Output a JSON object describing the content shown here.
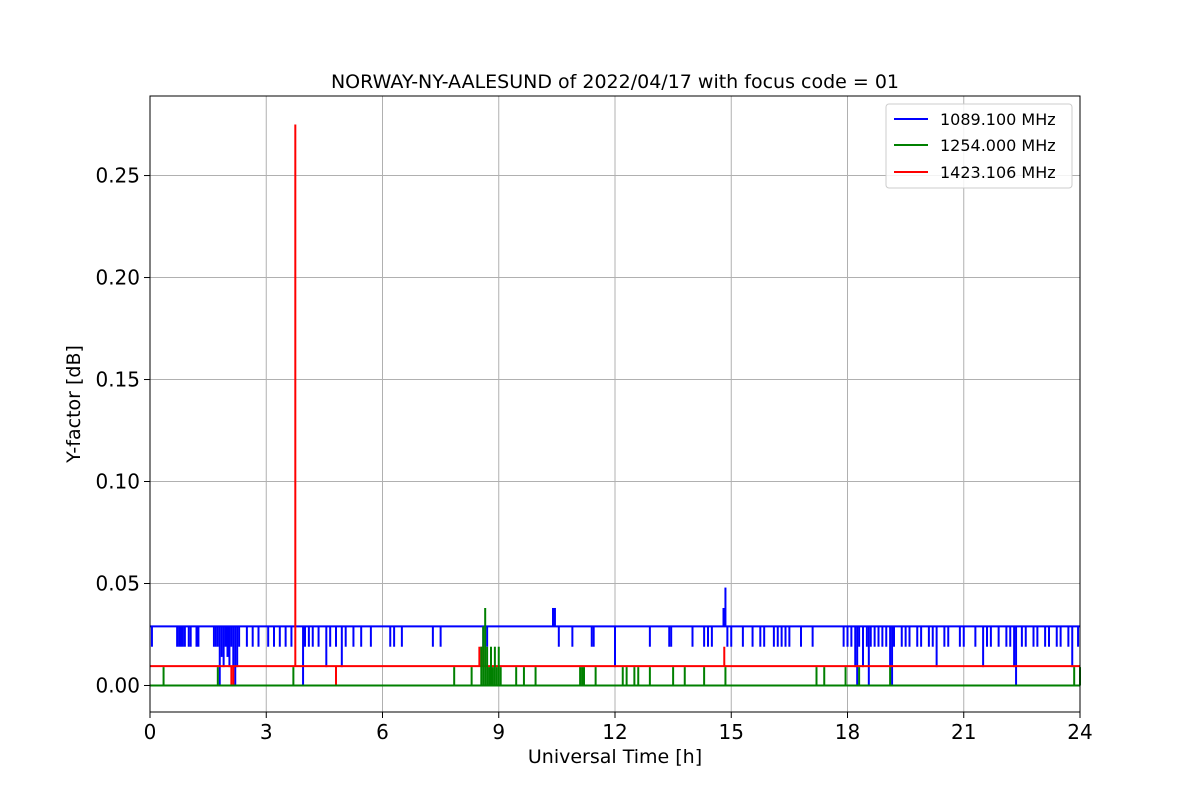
{
  "chart_data": {
    "type": "line",
    "title": "NORWAY-NY-AALESUND of 2022/04/17 with focus code = 01",
    "xlabel": "Universal Time [h]",
    "ylabel": "Y-factor [dB]",
    "xlim": [
      0,
      24
    ],
    "ylim": [
      -0.013,
      0.289
    ],
    "xticks": [
      0,
      3,
      6,
      9,
      12,
      15,
      18,
      21,
      24
    ],
    "xtick_labels": [
      "0",
      "3",
      "6",
      "9",
      "12",
      "15",
      "18",
      "21",
      "24"
    ],
    "yticks": [
      0.0,
      0.05,
      0.1,
      0.15,
      0.2,
      0.25
    ],
    "ytick_labels": [
      "0.00",
      "0.05",
      "0.10",
      "0.15",
      "0.20",
      "0.25"
    ],
    "grid": true,
    "legend_position": "top-right",
    "series": [
      {
        "name": "1089.100 MHz",
        "color": "#0000ff",
        "baseline": 0.029,
        "spikes": [
          [
            0.05,
            0.019
          ],
          [
            0.7,
            0.019
          ],
          [
            0.75,
            0.019
          ],
          [
            0.8,
            0.019
          ],
          [
            0.85,
            0.019
          ],
          [
            0.9,
            0.019
          ],
          [
            1.0,
            0.019
          ],
          [
            1.05,
            0.019
          ],
          [
            1.2,
            0.019
          ],
          [
            1.25,
            0.019
          ],
          [
            1.65,
            0.019
          ],
          [
            1.7,
            0.019
          ],
          [
            1.75,
            0.019
          ],
          [
            1.8,
            0.0
          ],
          [
            1.85,
            0.014
          ],
          [
            1.9,
            0.009
          ],
          [
            1.95,
            0.019
          ],
          [
            2.0,
            0.014
          ],
          [
            2.05,
            0.009
          ],
          [
            2.1,
            0.019
          ],
          [
            2.15,
            0.009
          ],
          [
            2.2,
            0.0
          ],
          [
            2.25,
            0.009
          ],
          [
            2.3,
            0.019
          ],
          [
            2.5,
            0.019
          ],
          [
            2.65,
            0.019
          ],
          [
            2.8,
            0.019
          ],
          [
            3.05,
            0.019
          ],
          [
            3.2,
            0.019
          ],
          [
            3.35,
            0.019
          ],
          [
            3.5,
            0.019
          ],
          [
            3.65,
            0.019
          ],
          [
            3.95,
            0.0
          ],
          [
            4.0,
            0.019
          ],
          [
            4.1,
            0.019
          ],
          [
            4.2,
            0.019
          ],
          [
            4.35,
            0.019
          ],
          [
            4.55,
            0.009
          ],
          [
            4.65,
            0.019
          ],
          [
            4.8,
            0.019
          ],
          [
            4.95,
            0.009
          ],
          [
            5.05,
            0.019
          ],
          [
            5.25,
            0.019
          ],
          [
            5.45,
            0.019
          ],
          [
            5.7,
            0.019
          ],
          [
            6.2,
            0.019
          ],
          [
            6.3,
            0.019
          ],
          [
            6.5,
            0.019
          ],
          [
            7.3,
            0.019
          ],
          [
            7.5,
            0.019
          ],
          [
            8.6,
            0.019
          ],
          [
            8.7,
            0.019
          ],
          [
            10.4,
            0.038
          ],
          [
            10.45,
            0.038
          ],
          [
            10.55,
            0.019
          ],
          [
            10.9,
            0.019
          ],
          [
            11.4,
            0.019
          ],
          [
            11.45,
            0.019
          ],
          [
            12.0,
            0.009
          ],
          [
            12.9,
            0.019
          ],
          [
            13.4,
            0.019
          ],
          [
            13.45,
            0.019
          ],
          [
            14.0,
            0.019
          ],
          [
            14.3,
            0.019
          ],
          [
            14.4,
            0.019
          ],
          [
            14.5,
            0.019
          ],
          [
            14.8,
            0.038
          ],
          [
            14.85,
            0.048
          ],
          [
            14.9,
            0.019
          ],
          [
            15.0,
            0.019
          ],
          [
            15.3,
            0.019
          ],
          [
            15.55,
            0.019
          ],
          [
            15.75,
            0.019
          ],
          [
            15.85,
            0.019
          ],
          [
            16.1,
            0.019
          ],
          [
            16.2,
            0.019
          ],
          [
            16.3,
            0.019
          ],
          [
            16.4,
            0.019
          ],
          [
            16.5,
            0.019
          ],
          [
            16.8,
            0.019
          ],
          [
            17.1,
            0.019
          ],
          [
            17.9,
            0.019
          ],
          [
            18.0,
            0.019
          ],
          [
            18.1,
            0.019
          ],
          [
            18.2,
            0.009
          ],
          [
            18.25,
            0.0
          ],
          [
            18.3,
            0.019
          ],
          [
            18.4,
            0.009
          ],
          [
            18.5,
            0.019
          ],
          [
            18.55,
            0.0
          ],
          [
            18.6,
            0.019
          ],
          [
            18.7,
            0.019
          ],
          [
            18.8,
            0.019
          ],
          [
            18.9,
            0.019
          ],
          [
            19.0,
            0.019
          ],
          [
            19.1,
            0.009
          ],
          [
            19.15,
            0.0
          ],
          [
            19.2,
            0.019
          ],
          [
            19.4,
            0.019
          ],
          [
            19.5,
            0.019
          ],
          [
            19.6,
            0.019
          ],
          [
            19.8,
            0.019
          ],
          [
            19.9,
            0.019
          ],
          [
            20.1,
            0.019
          ],
          [
            20.2,
            0.019
          ],
          [
            20.3,
            0.009
          ],
          [
            20.5,
            0.019
          ],
          [
            20.6,
            0.019
          ],
          [
            20.9,
            0.019
          ],
          [
            21.0,
            0.019
          ],
          [
            21.3,
            0.019
          ],
          [
            21.5,
            0.009
          ],
          [
            21.6,
            0.019
          ],
          [
            21.7,
            0.019
          ],
          [
            21.9,
            0.019
          ],
          [
            22.1,
            0.019
          ],
          [
            22.2,
            0.019
          ],
          [
            22.3,
            0.009
          ],
          [
            22.35,
            0.0
          ],
          [
            22.5,
            0.019
          ],
          [
            22.6,
            0.019
          ],
          [
            22.8,
            0.019
          ],
          [
            22.9,
            0.019
          ],
          [
            23.1,
            0.019
          ],
          [
            23.2,
            0.019
          ],
          [
            23.4,
            0.019
          ],
          [
            23.5,
            0.019
          ],
          [
            23.7,
            0.019
          ],
          [
            23.8,
            0.009
          ],
          [
            23.95,
            0.019
          ]
        ]
      },
      {
        "name": "1254.000 MHz",
        "color": "#008000",
        "baseline": 0.0,
        "spikes": [
          [
            0.35,
            0.009
          ],
          [
            1.75,
            0.009
          ],
          [
            3.7,
            0.009
          ],
          [
            7.85,
            0.009
          ],
          [
            8.3,
            0.009
          ],
          [
            8.55,
            0.019
          ],
          [
            8.6,
            0.029
          ],
          [
            8.65,
            0.038
          ],
          [
            8.7,
            0.019
          ],
          [
            8.75,
            0.009
          ],
          [
            8.8,
            0.019
          ],
          [
            8.85,
            0.009
          ],
          [
            8.9,
            0.019
          ],
          [
            8.95,
            0.009
          ],
          [
            9.0,
            0.019
          ],
          [
            9.05,
            0.009
          ],
          [
            9.45,
            0.009
          ],
          [
            9.65,
            0.009
          ],
          [
            9.95,
            0.009
          ],
          [
            11.1,
            0.009
          ],
          [
            11.15,
            0.009
          ],
          [
            11.2,
            0.009
          ],
          [
            11.5,
            0.009
          ],
          [
            12.2,
            0.009
          ],
          [
            12.3,
            0.009
          ],
          [
            12.5,
            0.009
          ],
          [
            12.6,
            0.009
          ],
          [
            12.9,
            0.009
          ],
          [
            13.5,
            0.009
          ],
          [
            13.8,
            0.009
          ],
          [
            14.3,
            0.009
          ],
          [
            14.85,
            0.009
          ],
          [
            17.2,
            0.009
          ],
          [
            17.4,
            0.009
          ],
          [
            17.95,
            0.009
          ],
          [
            18.3,
            0.009
          ],
          [
            19.1,
            0.009
          ],
          [
            23.85,
            0.009
          ],
          [
            24.0,
            0.009
          ]
        ]
      },
      {
        "name": "1423.106 MHz",
        "color": "#ff0000",
        "baseline": 0.0095,
        "spikes": [
          [
            2.1,
            0.0
          ],
          [
            2.15,
            0.0
          ],
          [
            3.75,
            0.275
          ],
          [
            4.8,
            0.0
          ],
          [
            8.5,
            0.019
          ],
          [
            8.55,
            0.019
          ],
          [
            8.6,
            0.019
          ],
          [
            14.82,
            0.019
          ]
        ]
      }
    ]
  }
}
